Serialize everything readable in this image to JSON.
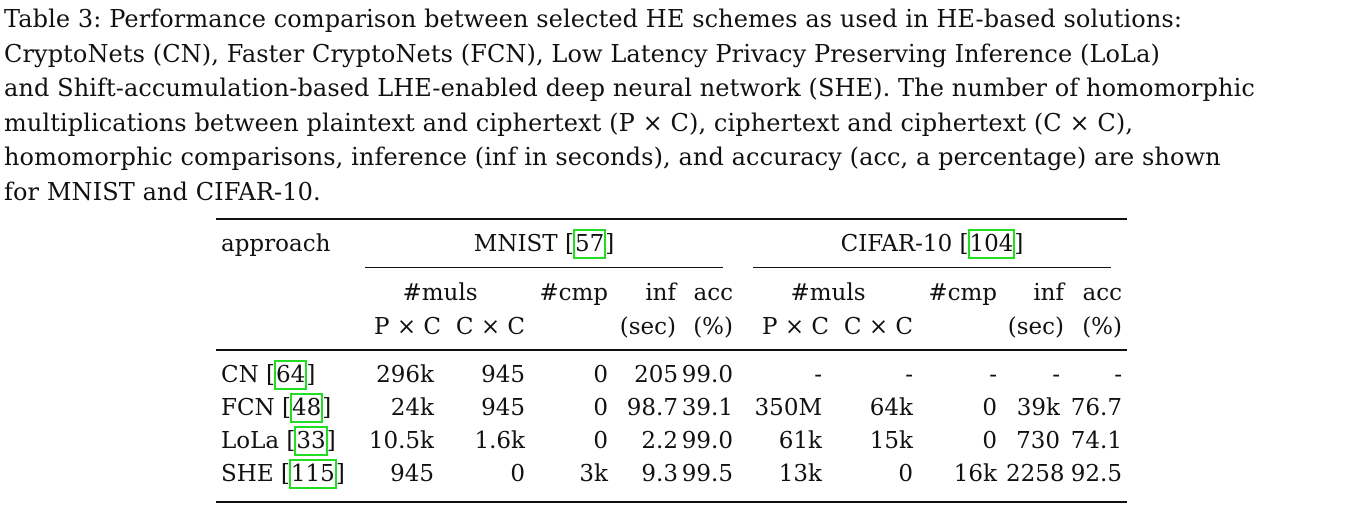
{
  "caption": {
    "label": "Table 3:",
    "line1": "Performance comparison between selected HE schemes as used in HE-based solutions:",
    "line2": "CryptoNets (CN), Faster CryptoNets (FCN), Low Latency Privacy Preserving Inference (LoLa)",
    "line3": "and Shift-accumulation-based LHE-enabled deep neural network (SHE). The number of homomorphic",
    "line4": "multiplications between plaintext and ciphertext (P × C), ciphertext and ciphertext (C × C),",
    "line5": "homomorphic comparisons, inference (inf in seconds), and accuracy (acc, a percentage) are shown",
    "line6": "for MNIST and CIFAR-10."
  },
  "table": {
    "approach_header": "approach",
    "groups": [
      {
        "name": "MNIST",
        "cite": "57"
      },
      {
        "name": "CIFAR-10",
        "cite": "104"
      }
    ],
    "subheaders": {
      "muls": "#muls",
      "pxc": "P × C",
      "cxc": "C × C",
      "cmp": "#cmp",
      "inf": "inf",
      "inf_unit": "(sec)",
      "acc": "acc",
      "acc_unit": "(%)"
    },
    "rows": [
      {
        "name": "CN",
        "cite": "64",
        "mnist": [
          "296k",
          "945",
          "0",
          "205",
          "99.0"
        ],
        "cifar": [
          "-",
          "-",
          "-",
          "-",
          "-"
        ]
      },
      {
        "name": "FCN",
        "cite": "48",
        "mnist": [
          "24k",
          "945",
          "0",
          "98.7",
          "39.1"
        ],
        "cifar": [
          "350M",
          "64k",
          "0",
          "39k",
          "76.7"
        ]
      },
      {
        "name": "LoLa",
        "cite": "33",
        "mnist": [
          "10.5k",
          "1.6k",
          "0",
          "2.2",
          "99.0"
        ],
        "cifar": [
          "61k",
          "15k",
          "0",
          "730",
          "74.1"
        ]
      },
      {
        "name": "SHE",
        "cite": "115",
        "mnist": [
          "945",
          "0",
          "3k",
          "9.3",
          "99.5"
        ],
        "cifar": [
          "13k",
          "0",
          "16k",
          "2258",
          "92.5"
        ]
      }
    ]
  }
}
